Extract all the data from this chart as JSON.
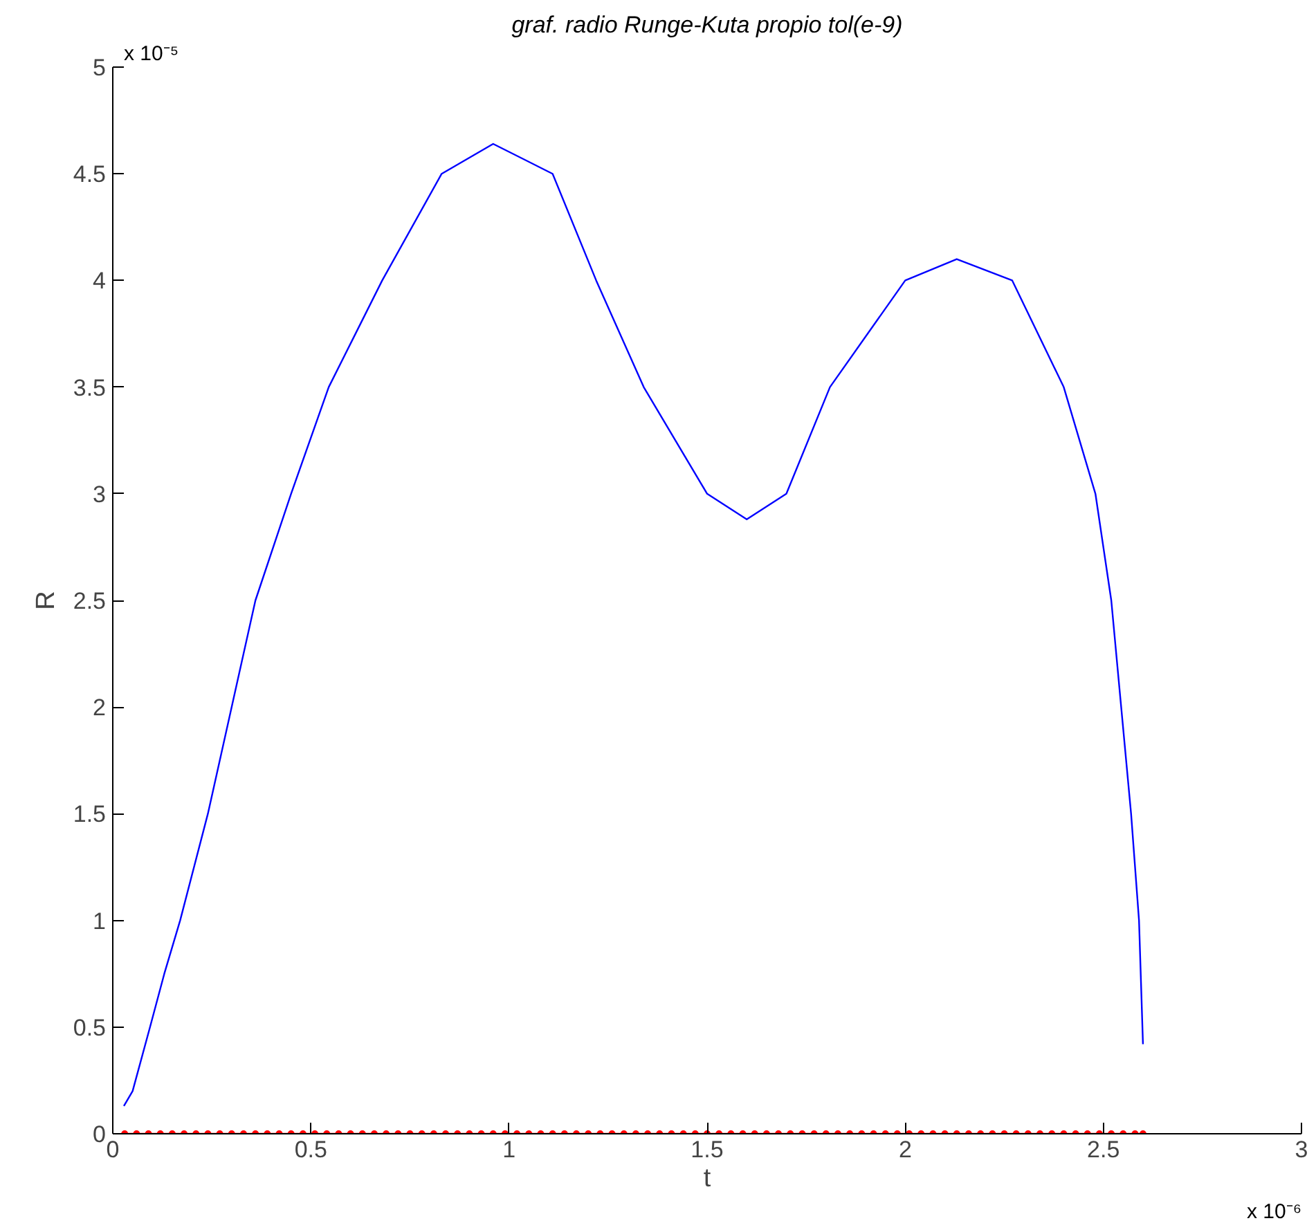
{
  "chart_data": {
    "type": "line",
    "title": "graf. radio Runge-Kuta propio tol(e-9)",
    "xlabel": "t",
    "ylabel": "R",
    "annotations": [
      "x 10⁻⁵",
      "x 10⁻⁶"
    ],
    "xlim": [
      0,
      3
    ],
    "ylim": [
      0,
      5
    ],
    "xticks": [
      0,
      0.5,
      1,
      1.5,
      2,
      2.5,
      3
    ],
    "yticks": [
      0,
      0.5,
      1,
      1.5,
      2,
      2.5,
      3,
      3.5,
      4,
      4.5,
      5
    ],
    "grid": false,
    "line_style": "solid",
    "series": [
      {
        "color": "#0000ff",
        "marker": "none",
        "x": [
          0.028,
          0.05,
          0.094,
          0.13,
          0.17,
          0.24,
          0.3,
          0.36,
          0.45,
          0.545,
          0.68,
          0.83,
          0.96,
          1.11,
          1.22,
          1.34,
          1.5,
          1.6,
          1.7,
          1.81,
          2.0,
          2.13,
          2.27,
          2.4,
          2.48,
          2.52,
          2.57,
          2.59,
          2.6
        ],
        "values": [
          0.13,
          0.2,
          0.5,
          0.75,
          1.0,
          1.5,
          2.0,
          2.5,
          3.0,
          3.5,
          4.0,
          4.5,
          4.64,
          4.5,
          4.0,
          3.5,
          3.0,
          2.88,
          3.0,
          3.5,
          4.0,
          4.1,
          4.0,
          3.5,
          3.0,
          2.5,
          1.5,
          1.0,
          0.42
        ]
      },
      {
        "color": "#ff0000",
        "marker": "circle",
        "x": [
          0.03,
          0.06,
          0.09,
          0.12,
          0.15,
          0.18,
          0.21,
          0.24,
          0.27,
          0.3,
          0.33,
          0.36,
          0.39,
          0.42,
          0.45,
          0.48,
          0.51,
          0.54,
          0.57,
          0.6,
          0.63,
          0.66,
          0.69,
          0.72,
          0.75,
          0.78,
          0.81,
          0.84,
          0.87,
          0.9,
          0.93,
          0.96,
          0.99,
          1.02,
          1.05,
          1.08,
          1.11,
          1.14,
          1.17,
          1.2,
          1.23,
          1.26,
          1.29,
          1.32,
          1.35,
          1.38,
          1.41,
          1.44,
          1.47,
          1.5,
          1.53,
          1.56,
          1.59,
          1.62,
          1.65,
          1.68,
          1.71,
          1.74,
          1.77,
          1.8,
          1.83,
          1.86,
          1.89,
          1.92,
          1.95,
          1.98,
          2.01,
          2.04,
          2.07,
          2.1,
          2.13,
          2.16,
          2.19,
          2.22,
          2.25,
          2.28,
          2.31,
          2.34,
          2.37,
          2.4,
          2.43,
          2.46,
          2.49,
          2.52,
          2.55,
          2.58,
          2.6
        ],
        "values": [
          0,
          0,
          0,
          0,
          0,
          0,
          0,
          0,
          0,
          0,
          0,
          0,
          0,
          0,
          0,
          0,
          0,
          0,
          0,
          0,
          0,
          0,
          0,
          0,
          0,
          0,
          0,
          0,
          0,
          0,
          0,
          0,
          0,
          0,
          0,
          0,
          0,
          0,
          0,
          0,
          0,
          0,
          0,
          0,
          0,
          0,
          0,
          0,
          0,
          0,
          0,
          0,
          0,
          0,
          0,
          0,
          0,
          0,
          0,
          0,
          0,
          0,
          0,
          0,
          0,
          0,
          0,
          0,
          0,
          0,
          0,
          0,
          0,
          0,
          0,
          0,
          0,
          0,
          0,
          0,
          0,
          0,
          0,
          0,
          0,
          0,
          0
        ]
      }
    ]
  }
}
